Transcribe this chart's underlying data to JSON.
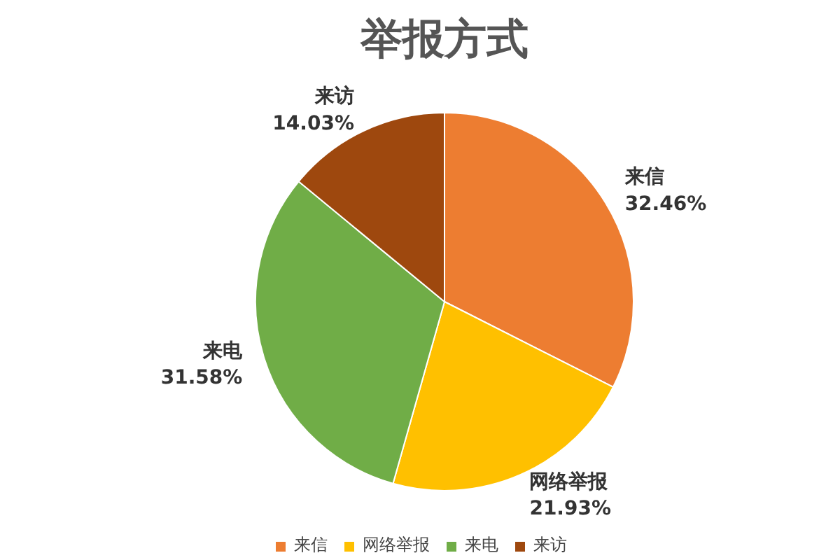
{
  "chart_data": {
    "type": "pie",
    "title": "举报方式",
    "categories": [
      "来信",
      "网络举报",
      "来电",
      "来访"
    ],
    "values": [
      32.46,
      21.93,
      31.58,
      14.03
    ],
    "value_labels": [
      "32.46%",
      "21.93%",
      "31.58%",
      "14.03%"
    ],
    "colors": [
      "#ed7d31",
      "#ffc000",
      "#70ad47",
      "#9e480e"
    ],
    "legend": "bottom"
  }
}
